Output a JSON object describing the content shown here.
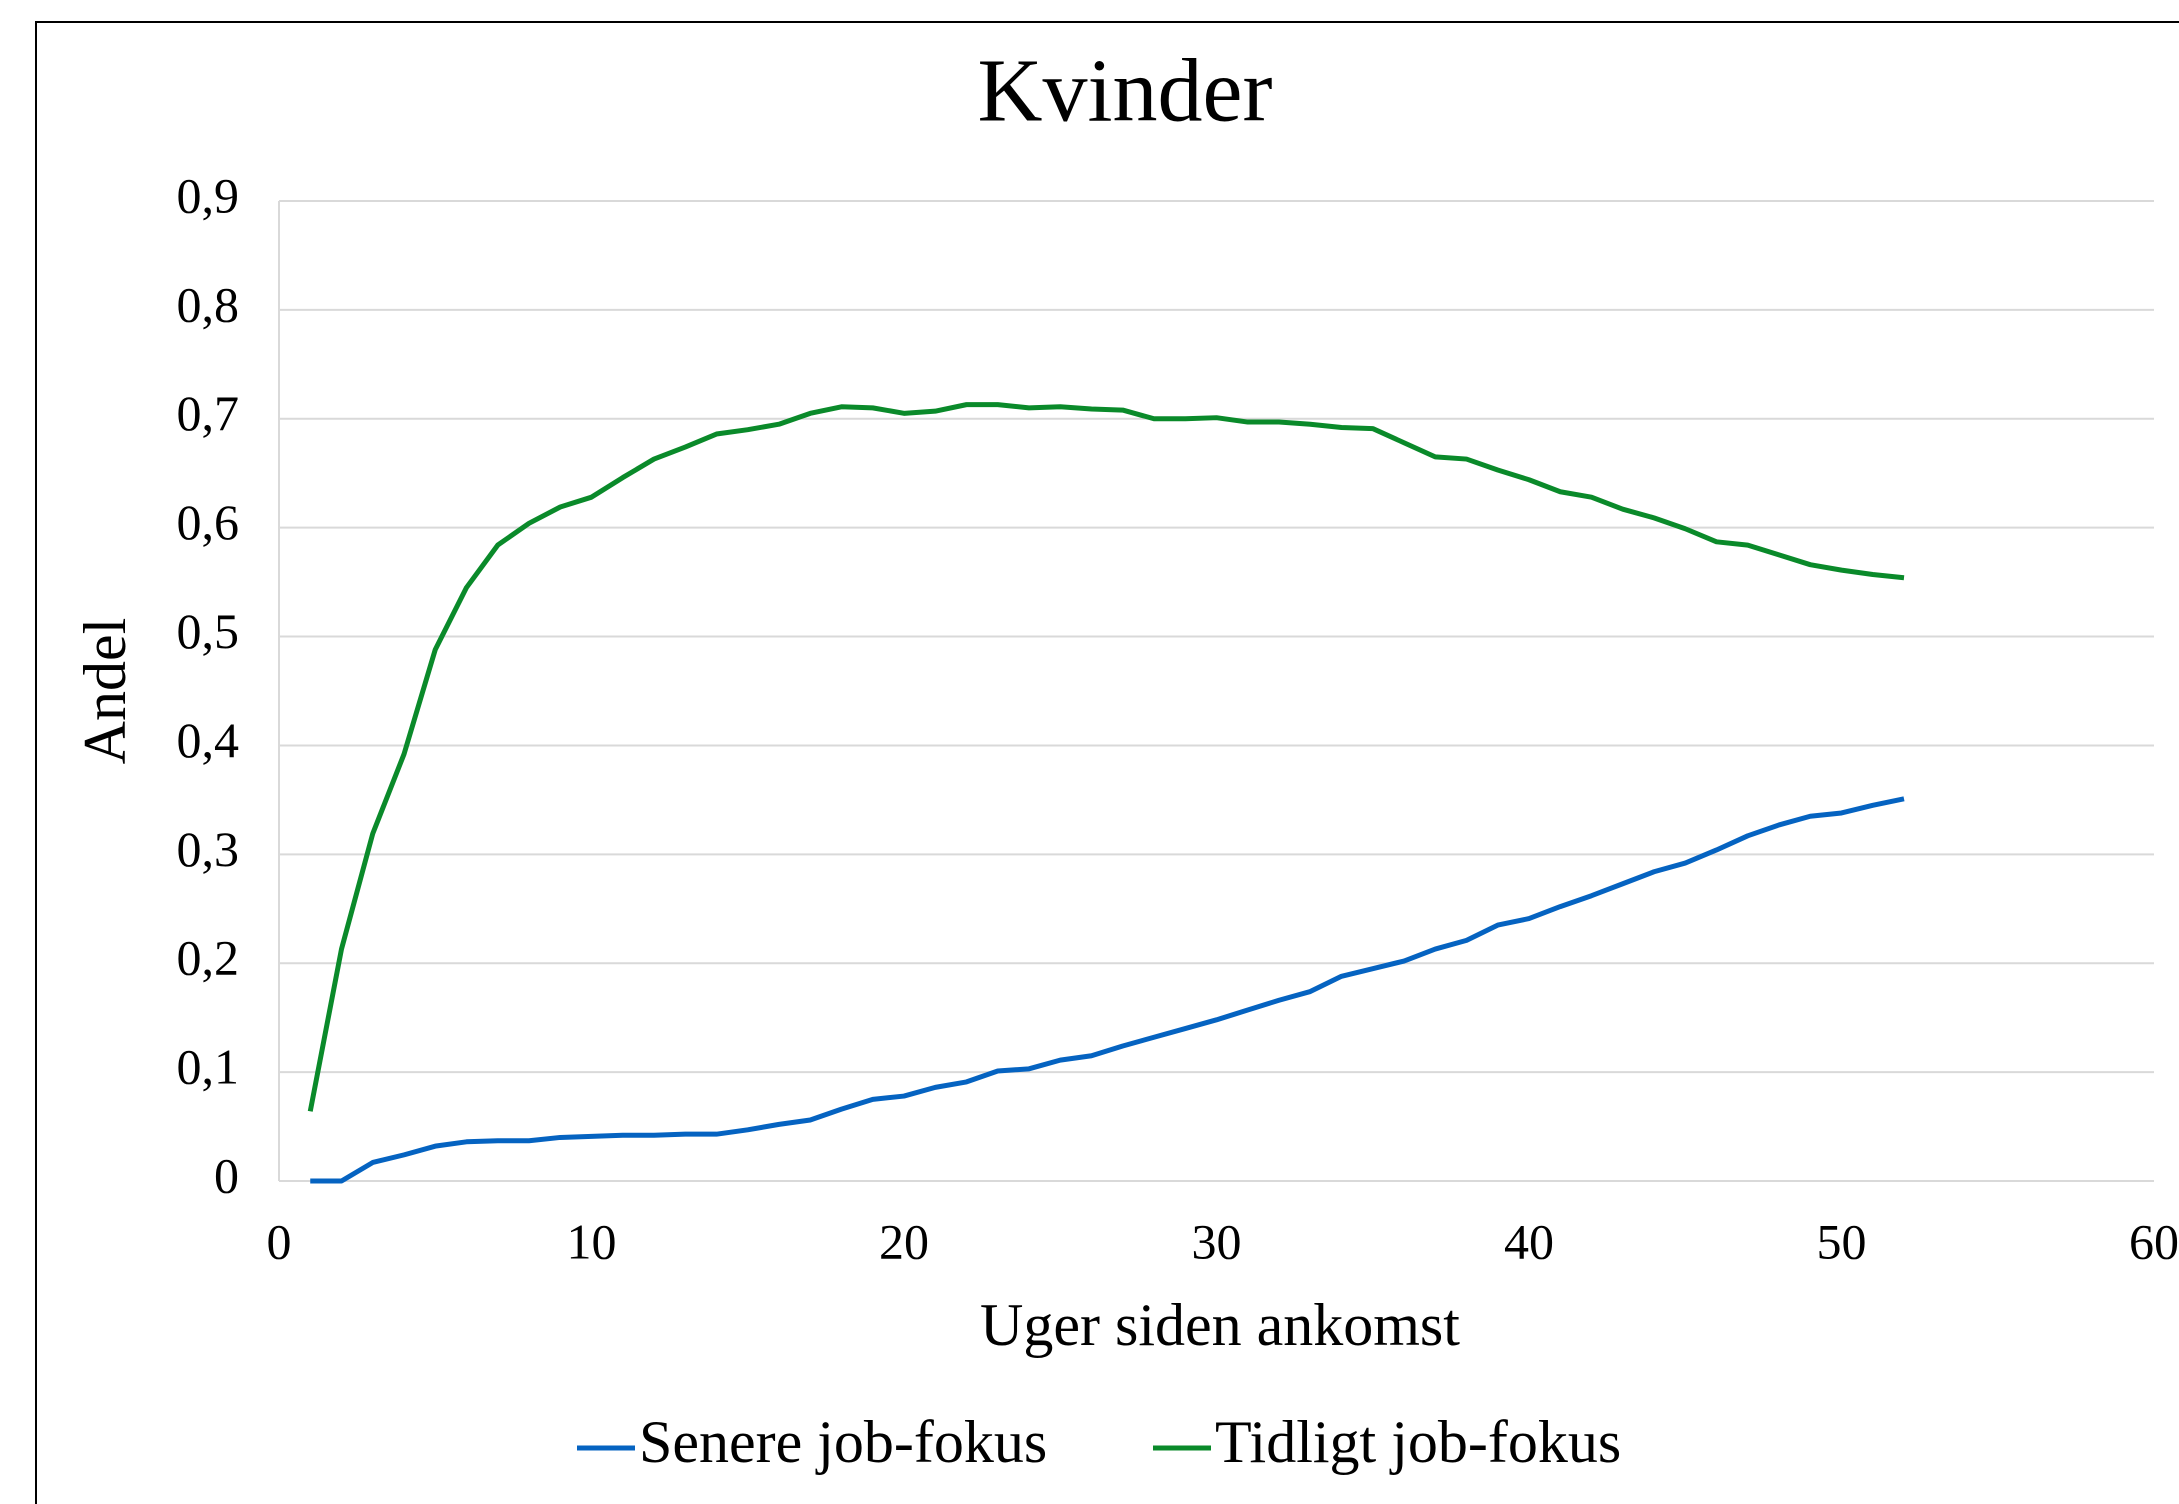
{
  "chart_data": {
    "type": "line",
    "title": "Kvinder",
    "x_label": "Uger siden ankomst",
    "y_label": "Andel",
    "x": [
      1,
      2,
      3,
      4,
      5,
      6,
      7,
      8,
      9,
      10,
      11,
      12,
      13,
      14,
      15,
      16,
      17,
      18,
      19,
      20,
      21,
      22,
      23,
      24,
      25,
      26,
      27,
      28,
      29,
      30,
      31,
      32,
      33,
      34,
      35,
      36,
      37,
      38,
      39,
      40,
      41,
      42,
      43,
      44,
      45,
      46,
      47,
      48,
      49,
      50,
      51,
      52
    ],
    "series": [
      {
        "name": "Senere job-fokus",
        "color": "#0563c1",
        "values": [
          0,
          0,
          0.017,
          0.024,
          0.032,
          0.036,
          0.037,
          0.037,
          0.04,
          0.041,
          0.042,
          0.042,
          0.043,
          0.043,
          0.047,
          0.052,
          0.056,
          0.066,
          0.075,
          0.078,
          0.086,
          0.091,
          0.101,
          0.103,
          0.111,
          0.115,
          0.124,
          0.132,
          0.14,
          0.148,
          0.157,
          0.166,
          0.174,
          0.188,
          0.195,
          0.202,
          0.213,
          0.221,
          0.235,
          0.241,
          0.252,
          0.262,
          0.273,
          0.284,
          0.292,
          0.304,
          0.317,
          0.327,
          0.335,
          0.338,
          0.345,
          0.351
        ]
      },
      {
        "name": "Tidligt job-fokus",
        "color": "#0a8a2a",
        "values": [
          0.064,
          0.213,
          0.319,
          0.392,
          0.488,
          0.545,
          0.584,
          0.604,
          0.619,
          0.628,
          0.646,
          0.663,
          0.674,
          0.686,
          0.69,
          0.695,
          0.705,
          0.711,
          0.71,
          0.705,
          0.707,
          0.713,
          0.713,
          0.71,
          0.711,
          0.709,
          0.708,
          0.7,
          0.7,
          0.701,
          0.697,
          0.697,
          0.695,
          0.692,
          0.691,
          0.678,
          0.665,
          0.663,
          0.653,
          0.644,
          0.633,
          0.628,
          0.617,
          0.609,
          0.599,
          0.587,
          0.584,
          0.575,
          0.566,
          0.561,
          0.557,
          0.554
        ]
      }
    ],
    "xlim": [
      0,
      60
    ],
    "xticks": [
      0,
      10,
      20,
      30,
      40,
      50,
      60
    ],
    "ylim": [
      0,
      0.9
    ],
    "yticks": [
      0,
      {
        "value": 0.1,
        "label": "0,1"
      },
      {
        "value": 0.2,
        "label": "0,2"
      },
      {
        "value": 0.3,
        "label": "0,3"
      },
      {
        "value": 0.4,
        "label": "0,4"
      },
      {
        "value": 0.5,
        "label": "0,5"
      },
      {
        "value": 0.6,
        "label": "0,6"
      },
      {
        "value": 0.7,
        "label": "0,7"
      },
      {
        "value": 0.8,
        "label": "0,8"
      },
      {
        "value": 0.9,
        "label": "0,9"
      }
    ],
    "grid": true,
    "legend": "bottom"
  }
}
